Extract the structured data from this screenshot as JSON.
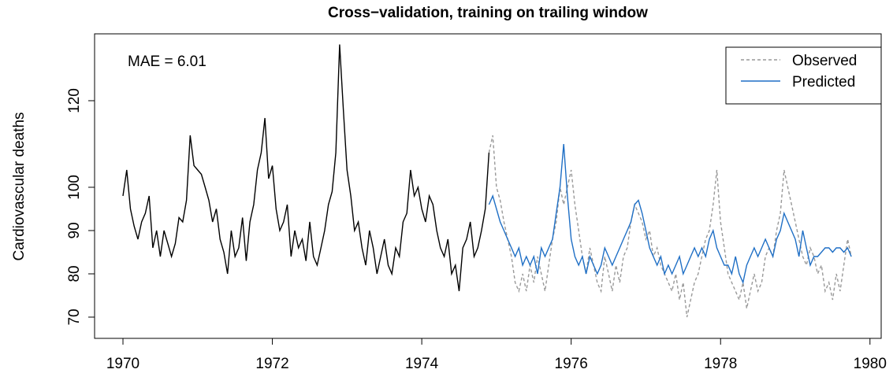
{
  "chart_data": {
    "type": "line",
    "title": "Cross−validation, training on trailing window",
    "y_label": "Cardiovascular deaths",
    "annotation": "MAE = 6.01",
    "xlim": [
      1969.62,
      1980.15
    ],
    "xticks": [
      1970,
      1972,
      1974,
      1976,
      1978,
      1980
    ],
    "ylim": [
      65.09,
      135.45
    ],
    "yticks": [
      70,
      80,
      90,
      100,
      120
    ],
    "legend": "top-right",
    "series": [
      {
        "color": "#000000",
        "x": [
          1970,
          1970.05,
          1970.1,
          1970.15,
          1970.2,
          1970.25,
          1970.3,
          1970.35,
          1970.4,
          1970.45,
          1970.5,
          1970.55,
          1970.6,
          1970.65,
          1970.7,
          1970.75,
          1970.8,
          1970.85,
          1970.9,
          1970.95,
          1971,
          1971.05,
          1971.1,
          1971.15,
          1971.2,
          1971.25,
          1971.3,
          1971.35,
          1971.4,
          1971.45,
          1971.5,
          1971.55,
          1971.6,
          1971.65,
          1971.7,
          1971.75,
          1971.8,
          1971.85,
          1971.9,
          1971.95,
          1972,
          1972.05,
          1972.1,
          1972.15,
          1972.2,
          1972.25,
          1972.3,
          1972.35,
          1972.4,
          1972.45,
          1972.5,
          1972.55,
          1972.6,
          1972.65,
          1972.7,
          1972.75,
          1972.8,
          1972.85,
          1972.9,
          1972.95,
          1973,
          1973.05,
          1973.1,
          1973.15,
          1973.2,
          1973.25,
          1973.3,
          1973.35,
          1973.4,
          1973.45,
          1973.5,
          1973.55,
          1973.6,
          1973.65,
          1973.7,
          1973.75,
          1973.8,
          1973.85,
          1973.9,
          1973.95,
          1974,
          1974.05,
          1974.1,
          1974.15,
          1974.2,
          1974.25,
          1974.3,
          1974.35,
          1974.4,
          1974.45,
          1974.5,
          1974.55,
          1974.6,
          1974.65,
          1974.7,
          1974.75,
          1974.8,
          1974.85,
          1974.9
        ],
        "values": [
          98,
          104,
          95,
          91,
          88,
          92,
          94,
          98,
          86,
          90,
          84,
          90,
          87,
          84,
          87,
          93,
          92,
          97,
          112,
          105,
          104,
          103,
          100,
          97,
          92,
          95,
          88,
          85,
          80,
          90,
          84,
          86,
          93,
          83,
          92,
          96,
          104,
          108,
          116,
          102,
          105,
          95,
          90,
          92,
          96,
          84,
          90,
          86,
          88,
          83,
          92,
          84,
          82,
          86,
          90,
          96,
          99,
          108,
          133,
          118,
          104,
          98,
          90,
          92,
          86,
          82,
          90,
          86,
          80,
          84,
          88,
          82,
          80,
          86,
          84,
          92,
          94,
          104,
          98,
          100,
          95,
          92,
          98,
          96,
          90,
          86,
          84,
          88,
          80,
          82,
          76,
          86,
          88,
          92,
          84,
          86,
          90,
          95,
          108
        ]
      },
      {
        "name": "Observed",
        "color": "#999999",
        "dash": true,
        "x": [
          1974.9,
          1974.95,
          1975,
          1975.05,
          1975.1,
          1975.15,
          1975.2,
          1975.25,
          1975.3,
          1975.35,
          1975.4,
          1975.45,
          1975.5,
          1975.55,
          1975.6,
          1975.65,
          1975.7,
          1975.75,
          1975.8,
          1975.85,
          1975.9,
          1975.95,
          1976,
          1976.05,
          1976.1,
          1976.15,
          1976.2,
          1976.25,
          1976.3,
          1976.35,
          1976.4,
          1976.45,
          1976.5,
          1976.55,
          1976.6,
          1976.65,
          1976.7,
          1976.75,
          1976.8,
          1976.85,
          1976.9,
          1976.95,
          1977,
          1977.05,
          1977.1,
          1977.15,
          1977.2,
          1977.25,
          1977.3,
          1977.35,
          1977.4,
          1977.45,
          1977.5,
          1977.55,
          1977.6,
          1977.65,
          1977.7,
          1977.75,
          1977.8,
          1977.85,
          1977.9,
          1977.95,
          1978,
          1978.05,
          1978.1,
          1978.15,
          1978.2,
          1978.25,
          1978.3,
          1978.35,
          1978.4,
          1978.45,
          1978.5,
          1978.55,
          1978.6,
          1978.65,
          1978.7,
          1978.75,
          1978.8,
          1978.85,
          1978.9,
          1978.95,
          1979,
          1979.05,
          1979.1,
          1979.15,
          1979.2,
          1979.25,
          1979.3,
          1979.35,
          1979.4,
          1979.45,
          1979.5,
          1979.55,
          1979.6,
          1979.65,
          1979.7,
          1979.75
        ],
        "values": [
          108,
          112,
          100,
          97,
          92,
          88,
          84,
          78,
          76,
          80,
          76,
          82,
          78,
          84,
          80,
          76,
          82,
          88,
          92,
          100,
          96,
          100,
          104,
          96,
          90,
          84,
          80,
          86,
          82,
          78,
          76,
          84,
          80,
          76,
          82,
          78,
          84,
          86,
          92,
          96,
          94,
          92,
          88,
          90,
          84,
          86,
          82,
          80,
          78,
          76,
          80,
          74,
          78,
          70,
          74,
          78,
          80,
          84,
          88,
          90,
          96,
          104,
          92,
          86,
          80,
          78,
          76,
          74,
          78,
          72,
          76,
          80,
          76,
          78,
          84,
          86,
          84,
          90,
          94,
          104,
          100,
          96,
          92,
          88,
          84,
          82,
          86,
          84,
          80,
          82,
          76,
          78,
          74,
          80,
          76,
          82,
          88,
          84
        ]
      },
      {
        "name": "Predicted",
        "color": "#1f6fc5",
        "x": [
          1974.9,
          1974.95,
          1975,
          1975.05,
          1975.1,
          1975.15,
          1975.2,
          1975.25,
          1975.3,
          1975.35,
          1975.4,
          1975.45,
          1975.5,
          1975.55,
          1975.6,
          1975.65,
          1975.7,
          1975.75,
          1975.8,
          1975.85,
          1975.9,
          1975.95,
          1976,
          1976.05,
          1976.1,
          1976.15,
          1976.2,
          1976.25,
          1976.3,
          1976.35,
          1976.4,
          1976.45,
          1976.5,
          1976.55,
          1976.6,
          1976.65,
          1976.7,
          1976.75,
          1976.8,
          1976.85,
          1976.9,
          1976.95,
          1977,
          1977.05,
          1977.1,
          1977.15,
          1977.2,
          1977.25,
          1977.3,
          1977.35,
          1977.4,
          1977.45,
          1977.5,
          1977.55,
          1977.6,
          1977.65,
          1977.7,
          1977.75,
          1977.8,
          1977.85,
          1977.9,
          1977.95,
          1978,
          1978.05,
          1978.1,
          1978.15,
          1978.2,
          1978.25,
          1978.3,
          1978.35,
          1978.4,
          1978.45,
          1978.5,
          1978.55,
          1978.6,
          1978.65,
          1978.7,
          1978.75,
          1978.8,
          1978.85,
          1978.9,
          1978.95,
          1979,
          1979.05,
          1979.1,
          1979.15,
          1979.2,
          1979.25,
          1979.3,
          1979.35,
          1979.4,
          1979.45,
          1979.5,
          1979.55,
          1979.6,
          1979.65,
          1979.7,
          1979.75
        ],
        "values": [
          96,
          98,
          95,
          92,
          90,
          88,
          86,
          84,
          86,
          82,
          84,
          82,
          84,
          80,
          86,
          84,
          86,
          88,
          94,
          100,
          110,
          98,
          88,
          84,
          82,
          84,
          80,
          84,
          82,
          80,
          82,
          86,
          84,
          82,
          84,
          86,
          88,
          90,
          92,
          96,
          97,
          94,
          90,
          86,
          84,
          82,
          84,
          80,
          82,
          80,
          82,
          84,
          80,
          82,
          84,
          86,
          84,
          86,
          84,
          88,
          90,
          86,
          84,
          82,
          82,
          80,
          84,
          80,
          78,
          82,
          84,
          86,
          84,
          86,
          88,
          86,
          84,
          88,
          90,
          94,
          92,
          90,
          88,
          84,
          90,
          86,
          82,
          84,
          84,
          85,
          86,
          86,
          85,
          86,
          86,
          85,
          86,
          84
        ]
      }
    ]
  }
}
